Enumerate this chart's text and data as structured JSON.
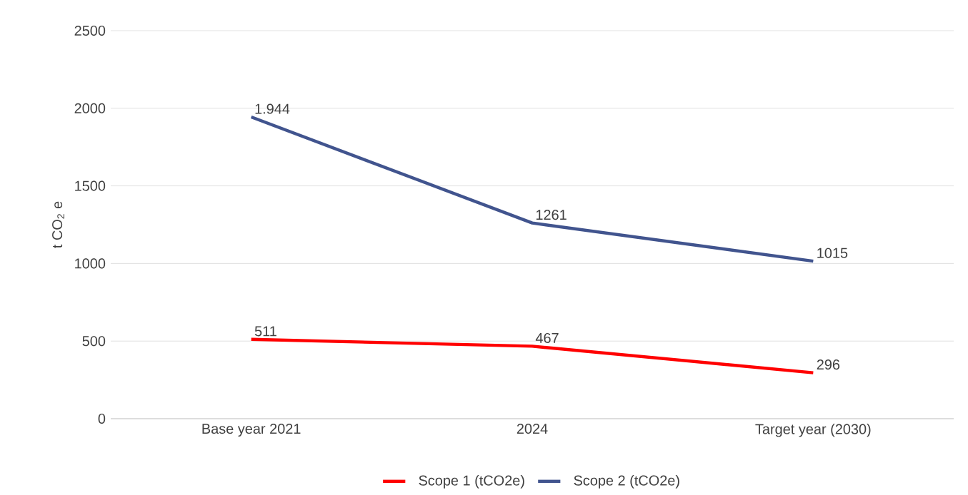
{
  "chart_data": {
    "type": "line",
    "ylabel": "t CO$_{2}$ e",
    "categories": [
      "Base year 2021",
      "2024",
      "Target year (2030)"
    ],
    "series": [
      {
        "name": "Scope 1 (tCO2e)",
        "color": "#ff0000",
        "values": [
          511,
          467,
          296
        ],
        "value_labels": [
          "511",
          "467",
          "296"
        ]
      },
      {
        "name": "Scope 2 (tCO2e)",
        "color": "#41548e",
        "values": [
          1944,
          1261,
          1015
        ],
        "value_labels": [
          "1.944",
          "1261",
          "1015"
        ]
      }
    ],
    "ylim": [
      0,
      2500
    ],
    "yticks": [
      0,
      500,
      1000,
      1500,
      2000,
      2500
    ],
    "grid": "y",
    "legend": "bottom",
    "marker": "none",
    "line_style": "solid"
  }
}
